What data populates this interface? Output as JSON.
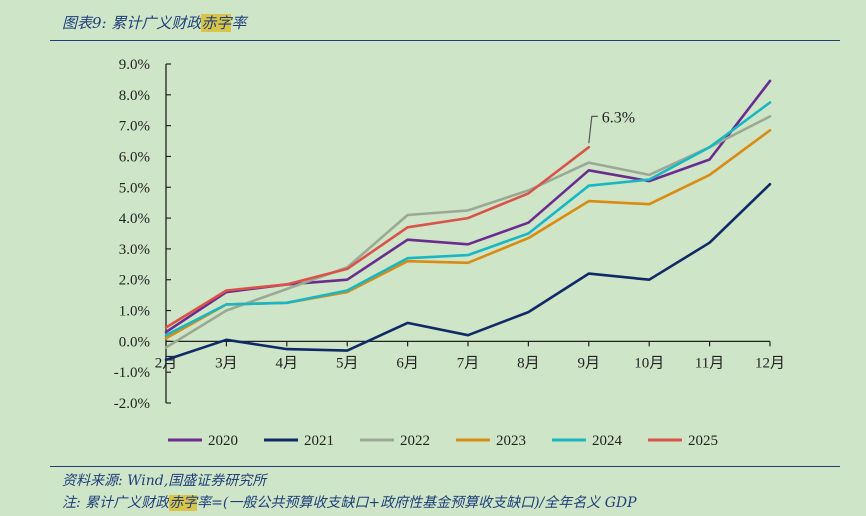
{
  "header": {
    "title_prefix": "图表9: 累计广义财政",
    "title_highlight": "赤字",
    "title_suffix": "率"
  },
  "footer": {
    "source": "资料来源: Wind,国盛证券研究所",
    "note_prefix": "注: 累计广义财政",
    "note_highlight": "赤字",
    "note_suffix": "率=(一般公共预算收支缺口+政府性基金预算收支缺口)/全年名义 GDP"
  },
  "colors": {
    "2020": "#6a2c8f",
    "2021": "#0f2a66",
    "2022": "#9ba994",
    "2023": "#d98b12",
    "2024": "#19b7c3",
    "2025": "#d9534a",
    "axis": "#222222"
  },
  "chart_data": {
    "type": "line",
    "title": "累计广义财政赤字率",
    "xlabel": "",
    "ylabel": "",
    "categories": [
      "2月",
      "3月",
      "4月",
      "5月",
      "6月",
      "7月",
      "8月",
      "9月",
      "10月",
      "11月",
      "12月"
    ],
    "y_tick_labels": [
      "-2.0%",
      "-1.0%",
      "0.0%",
      "1.0%",
      "2.0%",
      "3.0%",
      "4.0%",
      "5.0%",
      "6.0%",
      "7.0%",
      "8.0%",
      "9.0%"
    ],
    "ylim": [
      -2,
      9
    ],
    "legend_position": "bottom",
    "series": [
      {
        "name": "2020",
        "values": [
          0.3,
          1.6,
          1.85,
          2.0,
          3.3,
          3.15,
          3.85,
          5.55,
          5.2,
          5.9,
          8.45
        ]
      },
      {
        "name": "2021",
        "values": [
          -0.6,
          0.05,
          -0.25,
          -0.3,
          0.6,
          0.2,
          0.95,
          2.2,
          2.0,
          3.2,
          5.1
        ]
      },
      {
        "name": "2022",
        "values": [
          -0.2,
          1.0,
          1.7,
          2.4,
          4.1,
          4.25,
          4.9,
          5.8,
          5.4,
          6.3,
          7.3
        ]
      },
      {
        "name": "2023",
        "values": [
          0.1,
          1.2,
          1.25,
          1.6,
          2.6,
          2.55,
          3.35,
          4.55,
          4.45,
          5.4,
          6.85
        ]
      },
      {
        "name": "2024",
        "values": [
          0.2,
          1.2,
          1.25,
          1.65,
          2.7,
          2.8,
          3.5,
          5.05,
          5.25,
          6.3,
          7.75
        ]
      },
      {
        "name": "2025",
        "values": [
          0.45,
          1.65,
          1.85,
          2.35,
          3.7,
          4.0,
          4.8,
          6.3,
          null,
          null,
          null
        ]
      }
    ],
    "annotations": [
      {
        "series": "2025",
        "category": "9月",
        "text": "6.3%"
      }
    ]
  }
}
